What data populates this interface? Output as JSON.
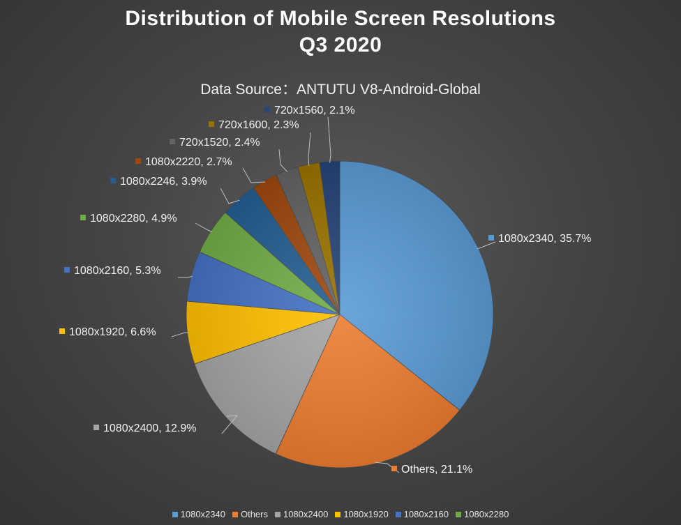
{
  "chart_data": {
    "type": "pie",
    "title": "Distribution of Mobile Screen Resolutions",
    "title_line2": "Q3 2020",
    "subtitle": "Data Source：ANTUTU V8-Android-Global",
    "slices": [
      {
        "label": "1080x2340",
        "value": 35.7,
        "display": "1080x2340, 35.7%",
        "color": "#5b9bd5"
      },
      {
        "label": "Others",
        "value": 21.1,
        "display": "Others, 21.1%",
        "color": "#ed7d31"
      },
      {
        "label": "1080x2400",
        "value": 12.9,
        "display": "1080x2400, 12.9%",
        "color": "#a5a5a5"
      },
      {
        "label": "1080x1920",
        "value": 6.6,
        "display": "1080x1920, 6.6%",
        "color": "#ffc000"
      },
      {
        "label": "1080x2160",
        "value": 5.3,
        "display": "1080x2160, 5.3%",
        "color": "#4472c4"
      },
      {
        "label": "1080x2280",
        "value": 4.9,
        "display": "1080x2280, 4.9%",
        "color": "#70ad47"
      },
      {
        "label": "1080x2246",
        "value": 3.9,
        "display": "1080x2246, 3.9%",
        "color": "#255e91"
      },
      {
        "label": "1080x2220",
        "value": 2.7,
        "display": "1080x2220, 2.7%",
        "color": "#9e480e"
      },
      {
        "label": "720x1520",
        "value": 2.4,
        "display": "720x1520, 2.4%",
        "color": "#636363"
      },
      {
        "label": "720x1600",
        "value": 2.3,
        "display": "720x1600, 2.3%",
        "color": "#997300"
      },
      {
        "label": "720x1560",
        "value": 2.1,
        "display": "720x1560, 2.1%",
        "color": "#264478"
      }
    ],
    "legend": [
      "1080x2340",
      "Others",
      "1080x2400",
      "1080x1920",
      "1080x2160",
      "1080x2280"
    ],
    "legend_position": "bottom"
  }
}
